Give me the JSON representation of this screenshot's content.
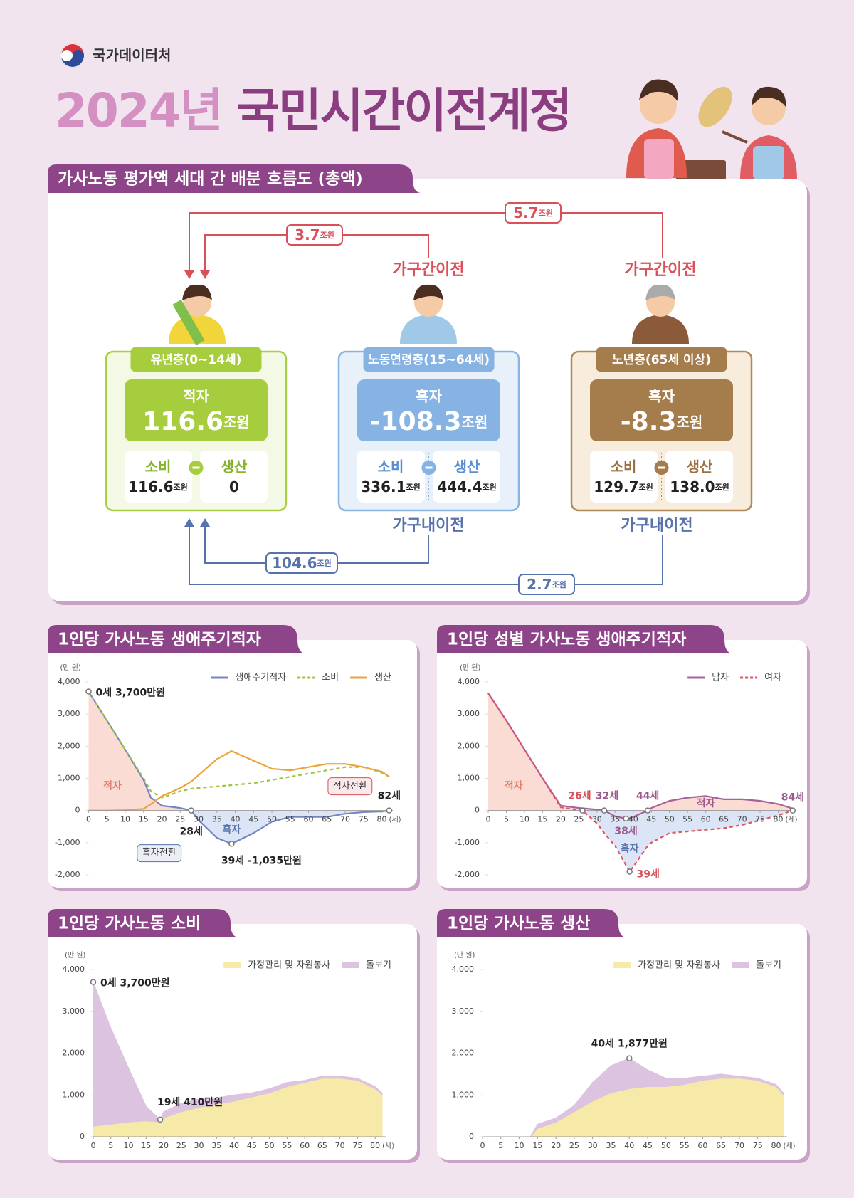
{
  "header": {
    "agency": "국가데이터처",
    "title_year": "2024년",
    "title_main": "국민시간이전계정"
  },
  "flow": {
    "title": "가사노동 평가액 세대 간 배분 흐름도 (총액)",
    "unit": "조원",
    "consumption_label": "소비",
    "production_label": "생산",
    "inter_household": {
      "label": "가구간이전",
      "amounts": [
        "5.7",
        "3.7"
      ]
    },
    "intra_household": {
      "label": "가구내이전",
      "amounts": [
        "104.6",
        "2.7"
      ]
    },
    "groups": [
      {
        "name": "유년층(0~14세)",
        "balance_label": "적자",
        "balance": "116.6",
        "consumption": "116.6",
        "production": "0"
      },
      {
        "name": "노동연령층(15~64세)",
        "balance_label": "흑자",
        "balance": "-108.3",
        "consumption": "336.1",
        "production": "444.4"
      },
      {
        "name": "노년층(65세 이상)",
        "balance_label": "흑자",
        "balance": "-8.3",
        "consumption": "129.7",
        "production": "138.0"
      }
    ]
  },
  "chart_data": [
    {
      "type": "line",
      "title": "1인당 가사노동 생애주기적자",
      "y_unit": "(만 원)",
      "x_unit": "(세)",
      "legend": "top-right",
      "x": [
        0,
        5,
        10,
        15,
        17,
        20,
        25,
        28,
        30,
        35,
        39,
        45,
        50,
        55,
        60,
        65,
        70,
        75,
        80,
        82
      ],
      "series": [
        {
          "name": "생애주기적자",
          "color": "#7486c4",
          "values": [
            3700,
            2800,
            1890,
            950,
            400,
            150,
            80,
            0,
            -300,
            -850,
            -1035,
            -700,
            -350,
            -200,
            -200,
            -200,
            -100,
            -50,
            -30,
            0
          ]
        },
        {
          "name": "소비",
          "color": "#9cc43c",
          "dash": true,
          "values": [
            3700,
            2800,
            1900,
            1000,
            600,
            400,
            600,
            680,
            700,
            750,
            790,
            850,
            950,
            1050,
            1150,
            1250,
            1350,
            1350,
            1180,
            1050
          ]
        },
        {
          "name": "생산",
          "color": "#eba43c",
          "values": [
            0,
            0,
            10,
            50,
            200,
            450,
            700,
            900,
            1100,
            1600,
            1850,
            1550,
            1300,
            1250,
            1350,
            1450,
            1450,
            1350,
            1210,
            1050
          ]
        }
      ],
      "shading": [
        {
          "series": 0,
          "side": "above",
          "color": "#fbdcd4"
        },
        {
          "series": 0,
          "side": "below",
          "color": "#dce5f5"
        }
      ],
      "xlim": [
        0,
        83
      ],
      "ylim": [
        -2000,
        4000
      ],
      "xticks": [
        0,
        5,
        10,
        15,
        20,
        25,
        30,
        35,
        40,
        45,
        50,
        55,
        60,
        65,
        70,
        75,
        80
      ],
      "yticks": [
        {
          "value": 4000,
          "label": "4,000"
        },
        {
          "value": 3000,
          "label": "3,000"
        },
        {
          "value": 2000,
          "label": "2,000"
        },
        {
          "value": 1000,
          "label": "1,000"
        },
        0,
        {
          "value": -1000,
          "label": "-1,000"
        },
        {
          "value": -2000,
          "label": "-2,000"
        }
      ],
      "annotations": [
        {
          "text": "0세 3,700만원",
          "x": 0,
          "y": 3700,
          "color": "#222222",
          "marker": true
        },
        {
          "text": "적자",
          "x": 6.5,
          "y": 760,
          "color": "#e07b6a"
        },
        {
          "text": "28세",
          "x": 28,
          "y": 0,
          "color": "#222222",
          "marker": true
        },
        {
          "text": "흑자전환",
          "x": 28,
          "y": 0,
          "color": "#5873ab",
          "box": true
        },
        {
          "text": "흑자",
          "x": 39,
          "y": -600,
          "color": "#5873ab"
        },
        {
          "text": "39세 -1,035만원",
          "x": 39,
          "y": -1035,
          "color": "#222222",
          "marker": true
        },
        {
          "text": "적자전환",
          "x": 82,
          "y": 0,
          "color": "#d9505a",
          "box": true
        },
        {
          "text": "82세",
          "x": 82,
          "y": 0,
          "color": "#222222",
          "marker": true
        }
      ]
    },
    {
      "type": "line",
      "title": "1인당 성별 가사노동 생애주기적자",
      "y_unit": "(만 원)",
      "x_unit": "(세)",
      "legend": "top-right",
      "x": [
        0,
        5,
        10,
        15,
        20,
        25,
        26,
        30,
        32,
        35,
        38,
        39,
        40,
        44,
        45,
        50,
        55,
        60,
        65,
        70,
        75,
        80,
        84
      ],
      "series": [
        {
          "name": "남자",
          "color": "#a8619a",
          "values": [
            3650,
            2800,
            1900,
            1000,
            150,
            80,
            70,
            30,
            0,
            -180,
            -250,
            -240,
            -200,
            0,
            80,
            300,
            400,
            450,
            350,
            350,
            300,
            200,
            60
          ]
        },
        {
          "name": "여자",
          "color": "#e05560",
          "dash": true,
          "values": [
            3650,
            2800,
            1900,
            1000,
            100,
            10,
            0,
            -400,
            -700,
            -1100,
            -1700,
            -1900,
            -1750,
            -1100,
            -1000,
            -700,
            -650,
            -600,
            -550,
            -450,
            -300,
            -150,
            0
          ]
        }
      ],
      "shading": [
        {
          "series": 0,
          "side": "above",
          "color": "#fbdcd4"
        },
        {
          "series": 1,
          "side": "below",
          "color": "#dce5f5"
        }
      ],
      "xlim": [
        0,
        85
      ],
      "ylim": [
        -2000,
        4000
      ],
      "xticks": [
        0,
        5,
        10,
        15,
        20,
        25,
        30,
        35,
        40,
        45,
        50,
        55,
        60,
        65,
        70,
        75,
        80
      ],
      "yticks": [
        {
          "value": 4000,
          "label": "4,000"
        },
        {
          "value": 3000,
          "label": "3,000"
        },
        {
          "value": 2000,
          "label": "2,000"
        },
        {
          "value": 1000,
          "label": "1,000"
        },
        0,
        {
          "value": -1000,
          "label": "-1,000"
        },
        {
          "value": -2000,
          "label": "-2,000"
        }
      ],
      "annotations": [
        {
          "text": "적자",
          "x": 7,
          "y": 760,
          "color": "#e07b6a"
        },
        {
          "text": "26세",
          "x": 26,
          "y": 0,
          "color": "#d9505a",
          "marker": true
        },
        {
          "text": "32세",
          "x": 32,
          "y": 0,
          "color": "#9b5a8f",
          "marker": true
        },
        {
          "text": "38세",
          "x": 38,
          "y": -250,
          "color": "#9b5a8f",
          "marker": true
        },
        {
          "text": "44세",
          "x": 44,
          "y": 0,
          "color": "#9b5a8f",
          "marker": true
        },
        {
          "text": "흑자",
          "x": 39,
          "y": -1190,
          "color": "#5873ab"
        },
        {
          "text": "39세",
          "x": 39,
          "y": -1900,
          "color": "#d9505a",
          "marker": true
        },
        {
          "text": "적자",
          "x": 60,
          "y": 210,
          "color": "#9b5a8f"
        },
        {
          "text": "84세",
          "x": 84,
          "y": 0,
          "color": "#9b5a8f",
          "marker": true
        }
      ]
    },
    {
      "type": "area",
      "title": "1인당 가사노동 소비",
      "y_unit": "(만 원)",
      "x_unit": "(세)",
      "legend": "top-right",
      "stacked": true,
      "x": [
        0,
        5,
        10,
        15,
        19,
        20,
        25,
        30,
        35,
        40,
        45,
        50,
        55,
        60,
        65,
        70,
        75,
        80,
        82
      ],
      "series": [
        {
          "name": "가정관리 및 자원봉사",
          "color": "#f7e9a8",
          "values": [
            250,
            300,
            350,
            380,
            350,
            450,
            600,
            700,
            780,
            850,
            950,
            1050,
            1200,
            1300,
            1400,
            1400,
            1350,
            1150,
            1000
          ]
        },
        {
          "name": "돌보기",
          "color": "#dcc3e0",
          "values": [
            3450,
            2300,
            1300,
            350,
            60,
            150,
            200,
            200,
            150,
            150,
            100,
            100,
            100,
            50,
            50,
            50,
            50,
            50,
            50
          ]
        }
      ],
      "xlim": [
        0,
        83
      ],
      "ylim": [
        0,
        4000
      ],
      "xticks": [
        0,
        5,
        10,
        15,
        20,
        25,
        30,
        35,
        40,
        45,
        50,
        55,
        60,
        65,
        70,
        75,
        80
      ],
      "yticks": [
        {
          "value": 4000,
          "label": "4,000"
        },
        {
          "value": 3000,
          "label": "3,000"
        },
        {
          "value": 2000,
          "label": "2,000"
        },
        {
          "value": 1000,
          "label": "1,000"
        },
        0
      ],
      "annotations": [
        {
          "text": "0세 3,700만원",
          "x": 0,
          "y": 3700,
          "color": "#222222",
          "marker": true
        },
        {
          "text": "19세 410만원",
          "x": 19,
          "y": 410,
          "color": "#222222",
          "marker": true
        }
      ]
    },
    {
      "type": "area",
      "title": "1인당 가사노동 생산",
      "y_unit": "(만 원)",
      "x_unit": "(세)",
      "legend": "top-right",
      "stacked": true,
      "x": [
        0,
        5,
        10,
        13,
        15,
        20,
        25,
        30,
        35,
        40,
        45,
        50,
        55,
        60,
        65,
        70,
        75,
        80,
        82
      ],
      "series": [
        {
          "name": "가정관리 및 자원봉사",
          "color": "#f7e9a8",
          "values": [
            0,
            0,
            0,
            0,
            200,
            350,
            600,
            850,
            1050,
            1150,
            1200,
            1200,
            1250,
            1350,
            1400,
            1400,
            1350,
            1200,
            1000
          ]
        },
        {
          "name": "돌보기",
          "color": "#dcc3e0",
          "values": [
            0,
            0,
            0,
            0,
            100,
            100,
            150,
            450,
            650,
            727,
            400,
            200,
            150,
            100,
            100,
            50,
            50,
            50,
            50
          ]
        }
      ],
      "xlim": [
        0,
        83
      ],
      "ylim": [
        0,
        4000
      ],
      "xticks": [
        0,
        5,
        10,
        15,
        20,
        25,
        30,
        35,
        40,
        45,
        50,
        55,
        60,
        65,
        70,
        75,
        80
      ],
      "yticks": [
        {
          "value": 4000,
          "label": "4,000"
        },
        {
          "value": 3000,
          "label": "3,000"
        },
        {
          "value": 2000,
          "label": "2,000"
        },
        {
          "value": 1000,
          "label": "1,000"
        },
        0
      ],
      "annotations": [
        {
          "text": "40세 1,877만원",
          "x": 40,
          "y": 1877,
          "color": "#222222",
          "marker": true
        }
      ]
    }
  ]
}
